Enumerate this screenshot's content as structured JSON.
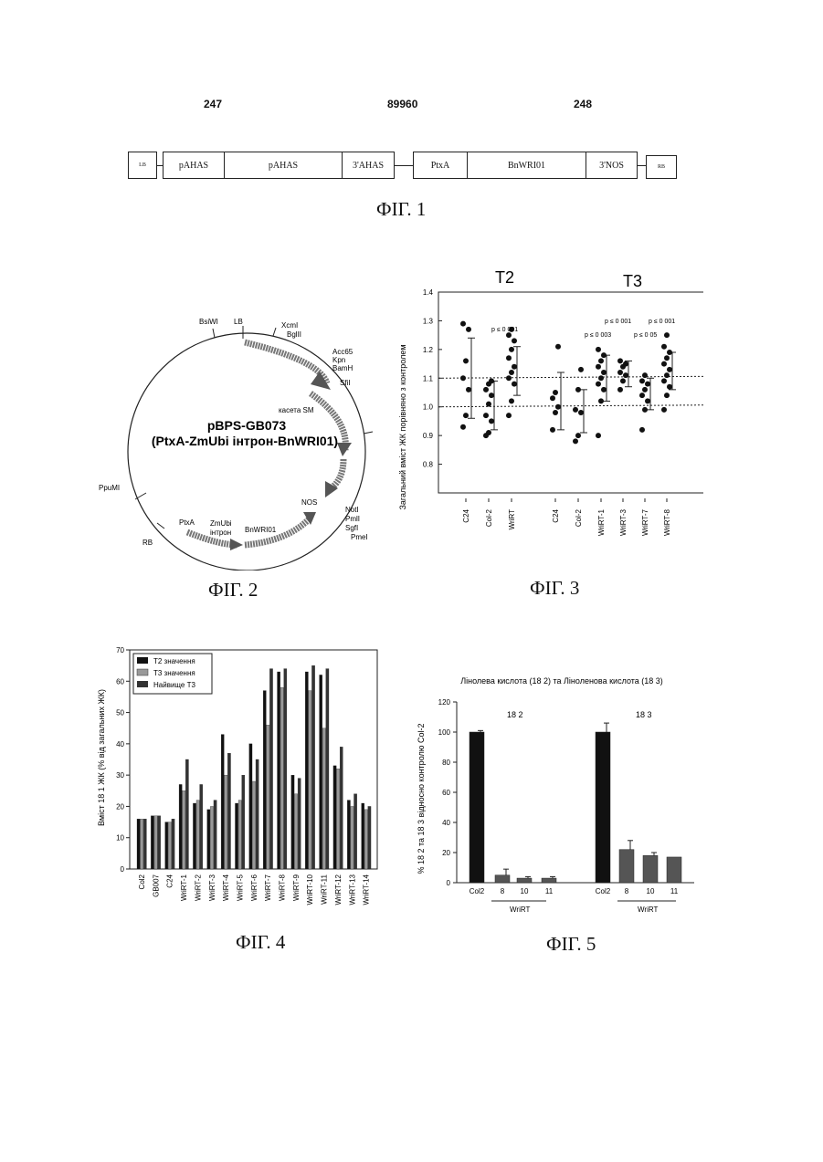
{
  "header": {
    "left": "247",
    "center": "89960",
    "right": "248"
  },
  "fig1": {
    "caption": "ФІГ. 1",
    "boxes": [
      "LB",
      "pAHAS",
      "pAHAS",
      "3'AHAS",
      "PtxA",
      "BnWRI01",
      "3'NOS",
      "RB"
    ]
  },
  "fig2": {
    "caption": "ФІГ. 2",
    "title_line1": "pBPS-GB073",
    "title_line2": "(PtxA-ZmUbi інтрон-BnWRI01)",
    "cassette_label": "касета SM",
    "labels": {
      "bsiwi": "BsiWI",
      "lb": "LB",
      "xcml": "XcmI",
      "bglll": "BglII",
      "acc65": "Acc65",
      "kpn": "Kpn",
      "bamh": "BamH",
      "sfil": "SfiI",
      "nos": "NOS",
      "notl": "NotI",
      "pmll": "PmlI",
      "sgfl": "SgfI",
      "pmel": "PmeI",
      "bnwri": "BnWRI01",
      "zmubi1": "ZmUbi",
      "zmubi2": "інтрон",
      "ptxa": "PtxA",
      "rb": "RB",
      "ppumi": "PpuMI"
    }
  },
  "fig3": {
    "caption": "ФІГ. 3",
    "t2": "T2",
    "t3": "T3",
    "p_labels": [
      "p ≤ 0 001",
      "p ≤ 0 001",
      "p ≤ 0 003",
      "p ≤ 0 001",
      "p ≤ 0 05"
    ],
    "chart_data": {
      "type": "scatter",
      "ylabel": "Загальний вміст ЖК порівняно з контролем",
      "ylim": [
        0.7,
        1.4
      ],
      "yticks": [
        "0.8",
        "0.9",
        "1.0",
        "1.1",
        "1.2",
        "1.3",
        "1.4"
      ],
      "categories": [
        "C24",
        "Col-2",
        "WriRT",
        "C24",
        "Col-2",
        "WriRT-1",
        "WriRT-3",
        "WriRT-7",
        "WriRT-8"
      ],
      "groups": [
        "T2",
        "T2",
        "T2",
        "T3",
        "T3",
        "T3",
        "T3",
        "T3",
        "T3"
      ],
      "reference_lines": [
        1.0,
        1.1
      ],
      "points": [
        [
          0.93,
          0.97,
          1.06,
          1.1,
          1.16,
          1.27,
          1.29
        ],
        [
          0.9,
          0.91,
          0.95,
          0.97,
          1.01,
          1.04,
          1.06,
          1.08,
          1.09
        ],
        [
          0.97,
          1.02,
          1.08,
          1.1,
          1.12,
          1.14,
          1.17,
          1.2,
          1.23,
          1.25,
          1.27
        ],
        [
          0.92,
          0.98,
          1.0,
          1.03,
          1.05,
          1.21
        ],
        [
          0.88,
          0.9,
          0.98,
          0.99,
          1.06,
          1.13
        ],
        [
          0.9,
          1.02,
          1.06,
          1.08,
          1.1,
          1.12,
          1.14,
          1.16,
          1.18,
          1.2
        ],
        [
          1.06,
          1.09,
          1.11,
          1.12,
          1.14,
          1.15,
          1.16
        ],
        [
          0.92,
          0.99,
          1.02,
          1.04,
          1.06,
          1.08,
          1.09,
          1.11
        ],
        [
          0.99,
          1.04,
          1.07,
          1.09,
          1.11,
          1.13,
          1.15,
          1.17,
          1.19,
          1.21,
          1.25
        ]
      ],
      "error_bars": [
        [
          0.96,
          1.24
        ],
        [
          0.92,
          1.09
        ],
        [
          1.04,
          1.21
        ],
        [
          0.92,
          1.12
        ],
        [
          0.91,
          1.06
        ],
        [
          1.02,
          1.18
        ],
        [
          1.07,
          1.16
        ],
        [
          0.99,
          1.1
        ],
        [
          1.06,
          1.19
        ]
      ]
    }
  },
  "fig4": {
    "caption": "ФІГ. 4",
    "chart_data": {
      "type": "bar",
      "ylabel": "Вміст 18 1 ЖК (% від загальних ЖК)",
      "ylim": [
        0,
        70
      ],
      "yticks": [
        "0",
        "10",
        "20",
        "30",
        "40",
        "50",
        "60",
        "70"
      ],
      "categories": [
        "Col2",
        "GB007",
        "C24",
        "WriRT-1",
        "WriRT-2",
        "WriRT-3",
        "WriRT-4",
        "WriRT-5",
        "WriRT-6",
        "WriRT-7",
        "WriRT-8",
        "WriRT-9",
        "WriRT-10",
        "WriRT-11",
        "WriRT-12",
        "WriRT-13",
        "WriRT-14"
      ],
      "series": [
        {
          "name": "T2 значення",
          "values": [
            16,
            17,
            15,
            27,
            21,
            19,
            43,
            21,
            40,
            57,
            63,
            30,
            63,
            62,
            33,
            22,
            21
          ]
        },
        {
          "name": "T3 значення",
          "values": [
            16,
            17,
            15,
            25,
            22,
            20,
            30,
            22,
            28,
            46,
            58,
            24,
            57,
            45,
            32,
            20,
            19
          ]
        },
        {
          "name": "Найвище T3",
          "values": [
            16,
            17,
            16,
            35,
            27,
            22,
            37,
            30,
            35,
            64,
            64,
            29,
            65,
            64,
            39,
            24,
            20
          ]
        }
      ],
      "legend_position": "top-left"
    }
  },
  "fig5": {
    "caption": "ФІГ. 5",
    "title": "Лінолева кислота (18 2) та Ліноленова кислота (18 3)",
    "group1": "18 2",
    "group2": "18 3",
    "group_axis_label": "WriRT",
    "chart_data": {
      "type": "bar",
      "ylabel": "% 18 2 та 18 3 відносно контролю Col-2",
      "ylim": [
        0,
        120
      ],
      "yticks": [
        "0",
        "20",
        "40",
        "60",
        "80",
        "100",
        "120"
      ],
      "categories": [
        "Col2",
        "8",
        "10",
        "11",
        "Col2",
        "8",
        "10",
        "11"
      ],
      "values": [
        100,
        5,
        3,
        3,
        100,
        22,
        18,
        17
      ],
      "errors": [
        1,
        4,
        1,
        1,
        6,
        6,
        2,
        0
      ]
    }
  }
}
